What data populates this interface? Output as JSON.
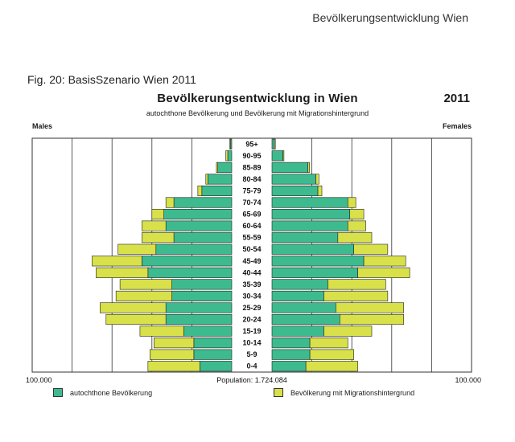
{
  "page_header": "Bevölkerungsentwicklung Wien",
  "figure_caption": "Fig. 20: BasisSzenario Wien 2011",
  "colors": {
    "autochthon": "#3dbb8f",
    "migration": "#d8e04a",
    "grid": "#333333",
    "background": "#ffffff"
  },
  "chart_data": {
    "type": "bar",
    "title": "Bevölkerungsentwicklung in Wien",
    "year": "2011",
    "subtitle": "autochthone Bevölkerung und Bevölkerung mit Migrationshintergrund",
    "left_label": "Males",
    "right_label": "Females",
    "x_min_label": "100.000",
    "x_max_label": "100.000",
    "xlim": [
      -100000,
      100000
    ],
    "population_label": "Population: 1.724.084",
    "categories": [
      "95+",
      "90-95",
      "85-89",
      "80-84",
      "75-79",
      "70-74",
      "65-69",
      "60-64",
      "55-59",
      "50-54",
      "45-49",
      "40-44",
      "35-39",
      "30-34",
      "25-29",
      "20-24",
      "15-19",
      "10-14",
      "5-9",
      "0-4"
    ],
    "series": [
      {
        "name": "autochthone Bevölkerung",
        "color": "#3dbb8f",
        "males": [
          600,
          2000,
          7000,
          12000,
          15000,
          29000,
          34000,
          33000,
          29000,
          38000,
          45000,
          42000,
          30000,
          30000,
          33000,
          33000,
          24000,
          19000,
          19000,
          16000
        ],
        "females": [
          1200,
          5500,
          18000,
          22000,
          23000,
          38000,
          39000,
          38000,
          33000,
          41000,
          46000,
          43000,
          28000,
          26000,
          32000,
          34000,
          26000,
          19000,
          19000,
          17000
        ]
      },
      {
        "name": "Bevölkerung mit Migrationshintergrund",
        "color": "#d8e04a",
        "males": [
          400,
          1000,
          700,
          1000,
          2000,
          4000,
          6000,
          12000,
          16000,
          19000,
          25000,
          26000,
          26000,
          28000,
          33000,
          30000,
          22000,
          20000,
          22000,
          26000
        ],
        "females": [
          500,
          500,
          800,
          1500,
          2000,
          4000,
          7000,
          9000,
          17000,
          17000,
          21000,
          26000,
          29000,
          32000,
          34000,
          32000,
          24000,
          19000,
          22000,
          26000
        ]
      }
    ]
  }
}
